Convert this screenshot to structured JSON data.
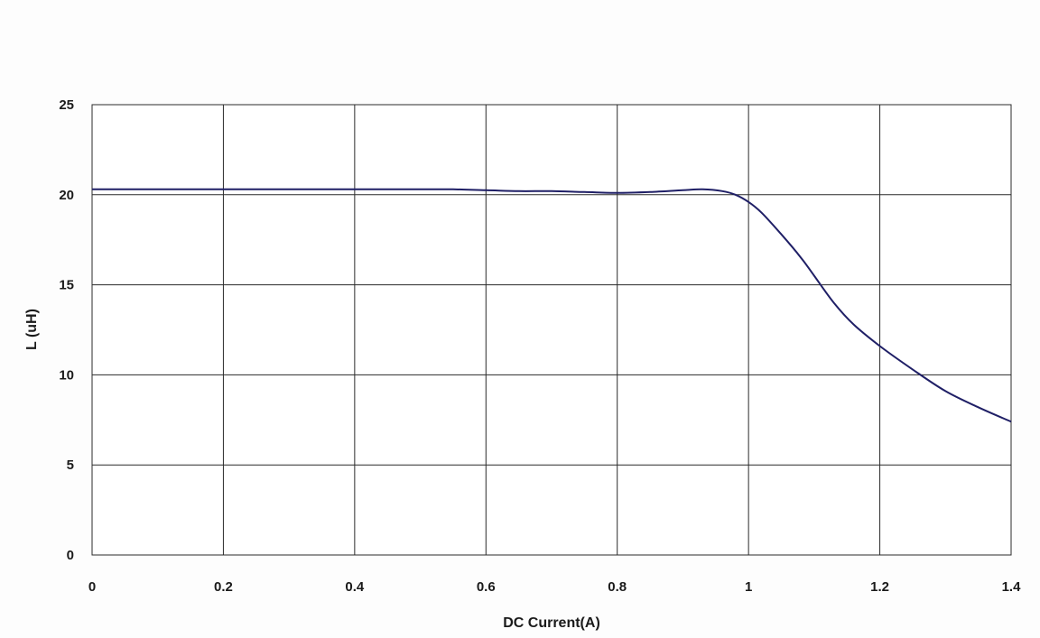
{
  "chart_data": {
    "type": "line",
    "title": "",
    "xlabel": "DC Current(A)",
    "ylabel": "L (uH)",
    "xlim": [
      0,
      1.4
    ],
    "ylim": [
      0,
      25
    ],
    "x_ticks": [
      "0",
      "0.2",
      "0.4",
      "0.6",
      "0.8",
      "1",
      "1.2",
      "1.4"
    ],
    "y_ticks": [
      "0",
      "5",
      "10",
      "15",
      "20",
      "25"
    ],
    "grid": true,
    "legend": "none",
    "line_color": "#1f1f66",
    "series": [
      {
        "x": [
          0,
          0.1,
          0.2,
          0.3,
          0.4,
          0.5,
          0.55,
          0.6,
          0.65,
          0.7,
          0.75,
          0.8,
          0.85,
          0.9,
          0.93,
          0.96,
          0.98,
          1.0,
          1.02,
          1.05,
          1.08,
          1.1,
          1.13,
          1.16,
          1.2,
          1.25,
          1.3,
          1.35,
          1.4
        ],
        "values": [
          20.3,
          20.3,
          20.3,
          20.3,
          20.3,
          20.3,
          20.3,
          20.25,
          20.2,
          20.2,
          20.15,
          20.1,
          20.15,
          20.25,
          20.3,
          20.2,
          20.0,
          19.6,
          19.0,
          17.8,
          16.5,
          15.5,
          14.0,
          12.8,
          11.6,
          10.3,
          9.1,
          8.2,
          7.4
        ]
      }
    ]
  }
}
